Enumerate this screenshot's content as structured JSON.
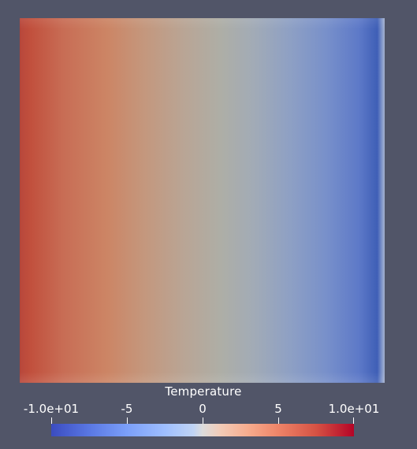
{
  "visualization": {
    "field_name": "Temperature",
    "colormap": {
      "min_label": "-1.0e+01",
      "max_label": "1.0e+01",
      "min_value": -10,
      "max_value": 10,
      "low_color": "#3b4cc0",
      "mid_color": "#dddcdc",
      "high_color": "#b40426"
    },
    "ticks": [
      {
        "label": "-1.0e+01",
        "value": -10
      },
      {
        "label": "-5",
        "value": -5
      },
      {
        "label": "0",
        "value": 0
      },
      {
        "label": "5",
        "value": 5
      },
      {
        "label": "1.0e+01",
        "value": 10
      }
    ],
    "background_color": "#515568"
  }
}
